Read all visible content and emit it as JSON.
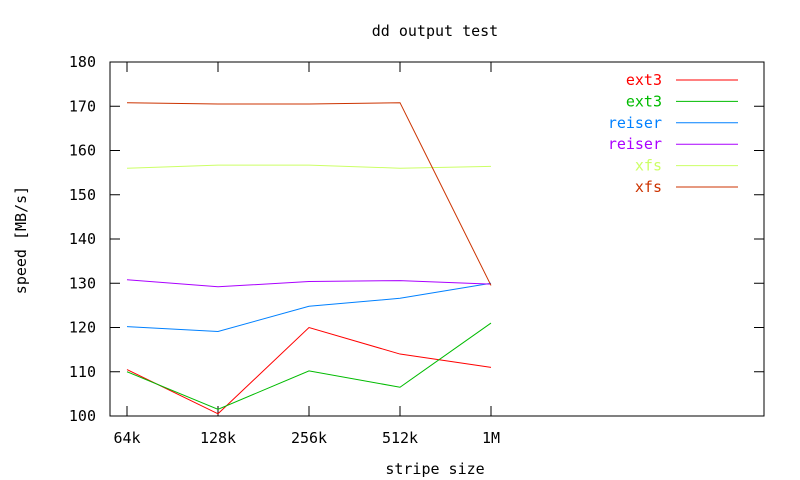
{
  "chart_data": {
    "type": "line",
    "title": "dd output test",
    "xlabel": "stripe size",
    "ylabel": "speed [MB/s]",
    "categories": [
      "64k",
      "128k",
      "256k",
      "512k",
      "1M"
    ],
    "ylim": [
      100,
      180
    ],
    "yticks": [
      100,
      110,
      120,
      130,
      140,
      150,
      160,
      170,
      180
    ],
    "grid": false,
    "legend_position": "top-right",
    "series": [
      {
        "name": "ext3",
        "color": "#ff0000",
        "values": [
          110.5,
          100.5,
          120,
          114,
          111
        ]
      },
      {
        "name": "ext3",
        "color": "#00bb00",
        "values": [
          110,
          101.5,
          110.2,
          106.5,
          121
        ]
      },
      {
        "name": "reiser",
        "color": "#0080ff",
        "values": [
          120.2,
          119.1,
          124.8,
          126.6,
          130
        ]
      },
      {
        "name": "reiser",
        "color": "#aa00ff",
        "values": [
          130.8,
          129.2,
          130.4,
          130.6,
          129.8
        ]
      },
      {
        "name": "xfs",
        "color": "#ccff66",
        "values": [
          156,
          156.7,
          156.7,
          156,
          156.4
        ]
      },
      {
        "name": "xfs",
        "color": "#cc3300",
        "values": [
          170.8,
          170.5,
          170.5,
          170.8,
          129.5
        ]
      }
    ]
  }
}
